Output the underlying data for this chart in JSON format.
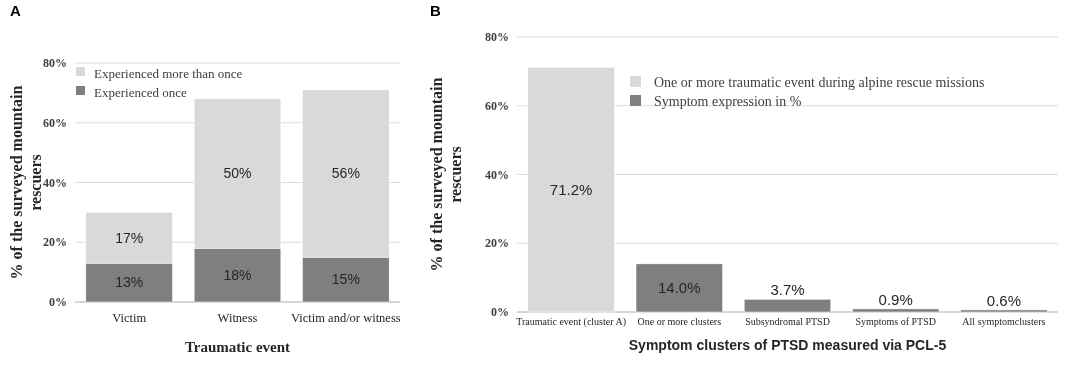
{
  "chart_data": [
    {
      "type": "bar",
      "title": "A",
      "xlabel": "Traumatic event",
      "ylabel": "% of the surveyed mountain rescuers",
      "categories": [
        "Victim",
        "Witness",
        "Victim and/or witness"
      ],
      "stacked": true,
      "series": [
        {
          "name": "Experienced once",
          "color": "#7f7f7f",
          "values": [
            13,
            18,
            15
          ],
          "value_labels": [
            "13%",
            "18%",
            "15%"
          ]
        },
        {
          "name": "Experienced more than once",
          "color": "#d9d9d9",
          "values": [
            17,
            50,
            56
          ],
          "value_labels": [
            "17%",
            "50%",
            "56%"
          ]
        }
      ],
      "ylim": [
        0,
        80
      ],
      "yticks": [
        {
          "value": 0,
          "label": "0%"
        },
        {
          "value": 20,
          "label": "20%"
        },
        {
          "value": 40,
          "label": "40%"
        },
        {
          "value": 60,
          "label": "60%"
        },
        {
          "value": 80,
          "label": "80%"
        }
      ],
      "grid": "y",
      "legend": "top left"
    },
    {
      "type": "bar",
      "title": "B",
      "xlabel": "Symptom clusters of PTSD measured via PCL-5",
      "ylabel": "% of the surveyed mountain rescuers",
      "categories": [
        "Traumatic event (cluster A)",
        "One or more clusters",
        "Subsyndromal PTSD",
        "Symptoms of PTSD",
        "All symptomclusters"
      ],
      "series": [
        {
          "name": "One or more traumatic event during alpine rescue missions",
          "color": "#d9d9d9",
          "values": [
            71.2,
            null,
            null,
            null,
            null
          ],
          "value_labels": [
            "71.2%",
            null,
            null,
            null,
            null
          ]
        },
        {
          "name": "Symptom expression in %",
          "color": "#7f7f7f",
          "values": [
            null,
            14.0,
            3.7,
            0.9,
            0.6
          ],
          "value_labels": [
            null,
            "14.0%",
            "3.7%",
            "0.9%",
            "0.6%"
          ]
        }
      ],
      "ylim": [
        0,
        80
      ],
      "yticks": [
        {
          "value": 0,
          "label": "0%"
        },
        {
          "value": 20,
          "label": "20%"
        },
        {
          "value": 40,
          "label": "40%"
        },
        {
          "value": 60,
          "label": "60%"
        },
        {
          "value": 80,
          "label": "80%"
        }
      ],
      "grid": "y",
      "legend": "top"
    }
  ]
}
